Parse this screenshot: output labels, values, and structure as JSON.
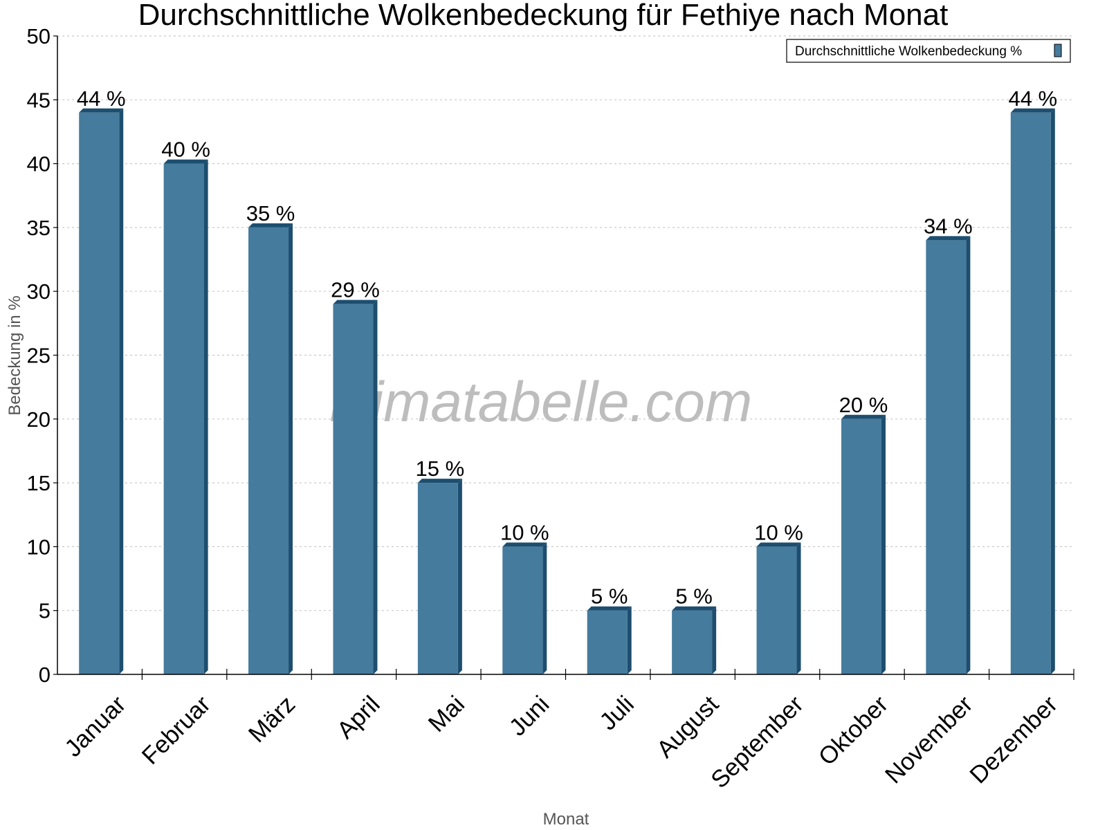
{
  "chart_data": {
    "type": "bar",
    "title": "Durchschnittliche Wolkenbedeckung für Fethiye nach Monat",
    "xlabel": "Monat",
    "ylabel": "Bedeckung in %",
    "ylim": [
      0,
      50
    ],
    "yticks": [
      0,
      5,
      10,
      15,
      20,
      25,
      30,
      35,
      40,
      45,
      50
    ],
    "grid": true,
    "legend_position": "top-right",
    "categories": [
      "Januar",
      "Februar",
      "März",
      "April",
      "Mai",
      "Juni",
      "Juli",
      "August",
      "September",
      "Oktober",
      "November",
      "Dezember"
    ],
    "series": [
      {
        "name": "Durchschnittliche Wolkenbedeckung %",
        "color": "#457b9d",
        "values": [
          44,
          40,
          35,
          29,
          15,
          10,
          5,
          5,
          10,
          20,
          34,
          44
        ],
        "labels": [
          "44 %",
          "40 %",
          "35 %",
          "29 %",
          "15 %",
          "10 %",
          "5 %",
          "5 %",
          "10 %",
          "20 %",
          "34 %",
          "44 %"
        ]
      }
    ]
  },
  "watermark": "klimatabelle.com",
  "colors": {
    "bar_front": "#457b9d",
    "bar_side": "#1d4e6f",
    "grid": "#c8c8c8",
    "axis": "#000000"
  }
}
